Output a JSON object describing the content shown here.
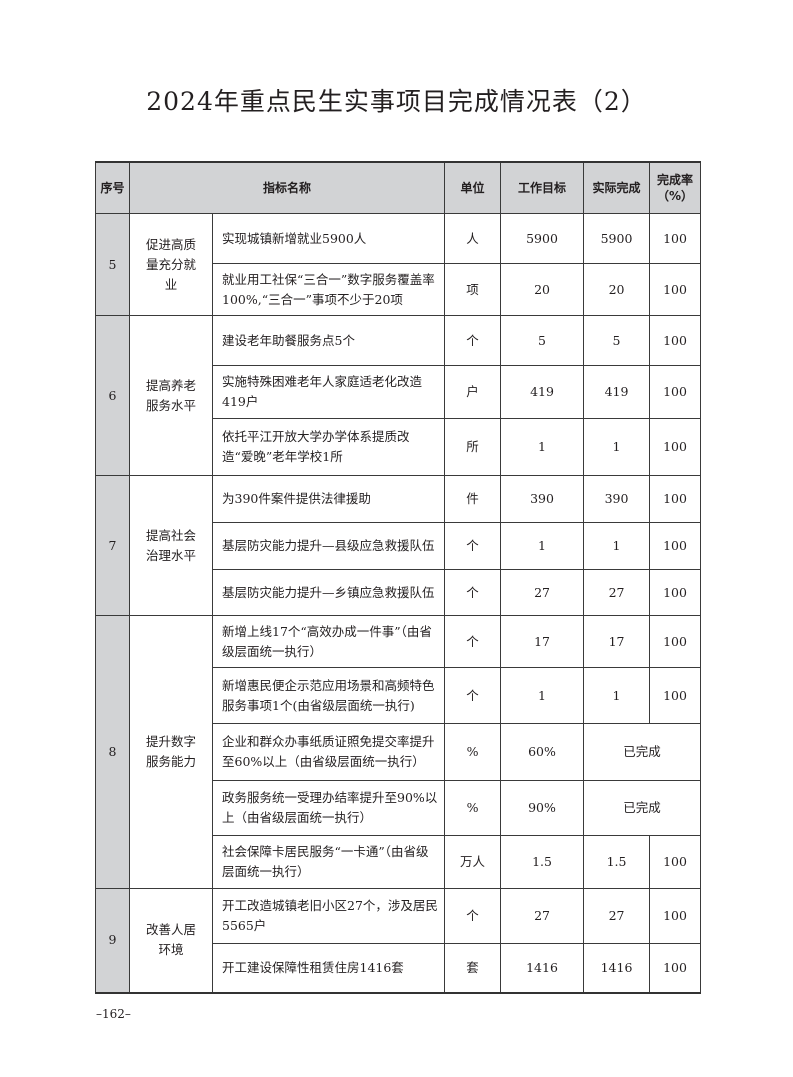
{
  "title": "2024年重点民生实事项目完成情况表（2）",
  "headers": [
    "序号",
    "指标名称",
    "单位",
    "工作目标",
    "实际完成",
    "完成率（%）"
  ],
  "groups": [
    {
      "seq": "5",
      "category": "促进高质量充分就业",
      "rows": [
        {
          "name": "实现城镇新增就业5900人",
          "unit": "人",
          "target": "5900",
          "actual": "5900",
          "rate": "100"
        },
        {
          "name": "就业用工社保“三合一”数字服务覆盖率100%,“三合一”事项不少于20项",
          "unit": "项",
          "target": "20",
          "actual": "20",
          "rate": "100"
        }
      ]
    },
    {
      "seq": "6",
      "category": "提高养老服务水平",
      "rows": [
        {
          "name": "建设老年助餐服务点5个",
          "unit": "个",
          "target": "5",
          "actual": "5",
          "rate": "100"
        },
        {
          "name": "实施特殊困难老年人家庭适老化改造419户",
          "unit": "户",
          "target": "419",
          "actual": "419",
          "rate": "100"
        },
        {
          "name": "依托平江开放大学办学体系提质改造“爱晚”老年学校1所",
          "unit": "所",
          "target": "1",
          "actual": "1",
          "rate": "100"
        }
      ]
    },
    {
      "seq": "7",
      "category": "提高社会治理水平",
      "rows": [
        {
          "name": "为390件案件提供法律援助",
          "unit": "件",
          "target": "390",
          "actual": "390",
          "rate": "100"
        },
        {
          "name": "基层防灾能力提升—县级应急救援队伍",
          "unit": "个",
          "target": "1",
          "actual": "1",
          "rate": "100"
        },
        {
          "name": "基层防灾能力提升—乡镇应急救援队伍",
          "unit": "个",
          "target": "27",
          "actual": "27",
          "rate": "100"
        }
      ]
    },
    {
      "seq": "8",
      "category": "提升数字服务能力",
      "rows": [
        {
          "name": "新增上线17个“高效办成一件事”（由省级层面统一执行）",
          "unit": "个",
          "target": "17",
          "actual": "17",
          "rate": "100"
        },
        {
          "name": "新增惠民便企示范应用场景和高频特色服务事项1个(由省级层面统一执行)",
          "unit": "个",
          "target": "1",
          "actual": "1",
          "rate": "100"
        },
        {
          "name": "企业和群众办事纸质证照免提交率提升至60%以上（由省级层面统一执行）",
          "unit": "%",
          "target": "60%",
          "merged": "已完成"
        },
        {
          "name": "政务服务统一受理办结率提升至90%以上（由省级层面统一执行）",
          "unit": "%",
          "target": "90%",
          "merged": "已完成"
        },
        {
          "name": "社会保障卡居民服务“一卡通”（由省级层面统一执行）",
          "unit": "万人",
          "target": "1.5",
          "actual": "1.5",
          "rate": "100"
        }
      ]
    },
    {
      "seq": "9",
      "category": "改善人居环境",
      "rows": [
        {
          "name": "开工改造城镇老旧小区27个，涉及居民5565户",
          "unit": "个",
          "target": "27",
          "actual": "27",
          "rate": "100"
        },
        {
          "name": "开工建设保障性租赁住房1416套",
          "unit": "套",
          "target": "1416",
          "actual": "1416",
          "rate": "100"
        }
      ]
    }
  ],
  "page_number": "–162–"
}
